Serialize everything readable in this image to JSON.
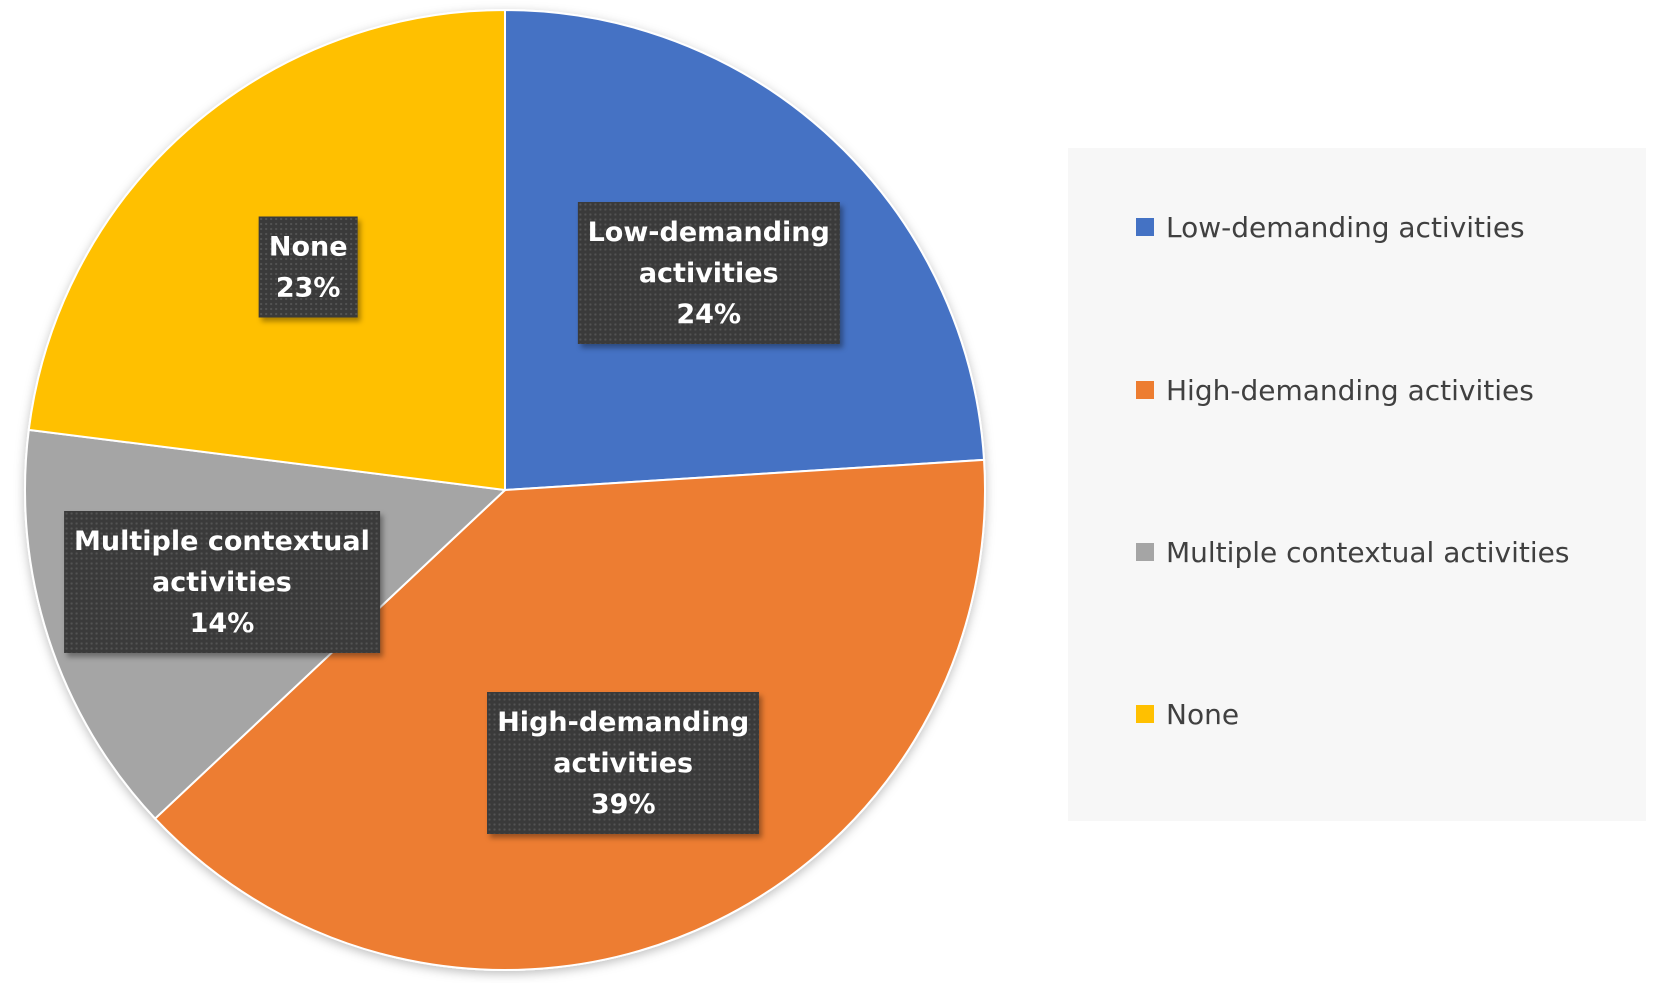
{
  "chart_data": {
    "type": "pie",
    "slices": [
      {
        "name": "Low-demanding activities",
        "name_lines": [
          "Low-demanding",
          "activities"
        ],
        "value": 24,
        "label": "24%",
        "color": "#4472C4"
      },
      {
        "name": "High-demanding activities",
        "name_lines": [
          "High-demanding",
          "activities"
        ],
        "value": 39,
        "label": "39%",
        "color": "#ED7D31"
      },
      {
        "name": "Multiple contextual activities",
        "name_lines": [
          "Multiple contextual",
          "activities"
        ],
        "value": 14,
        "label": "14%",
        "color": "#A5A5A5"
      },
      {
        "name": "None",
        "name_lines": [
          "None"
        ],
        "value": 23,
        "label": "23%",
        "color": "#FFC000"
      }
    ],
    "legend": {
      "position": "right",
      "entries": [
        "Low-demanding activities",
        "High-demanding activities",
        "Multiple contextual activities",
        "None"
      ]
    },
    "start_angle": "12 o'clock",
    "direction": "clockwise",
    "data_labels": "dark callout boxes with category name and percentage"
  }
}
